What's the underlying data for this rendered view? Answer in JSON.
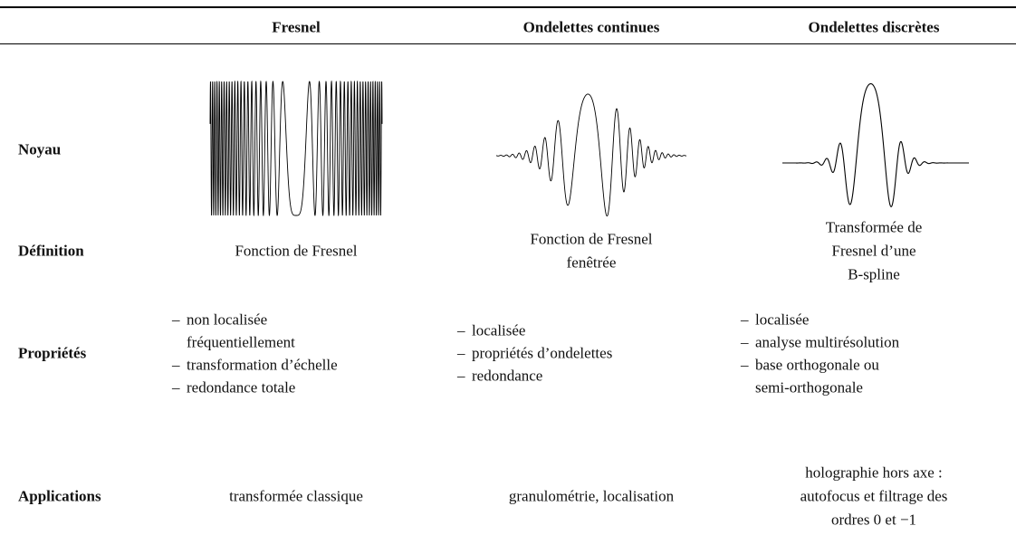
{
  "table": {
    "columns": [
      "Fresnel",
      "Ondelettes continues",
      "Ondelettes discrètes"
    ],
    "rows": [
      {
        "label": "Noyau"
      },
      {
        "label": "Définition",
        "cells": [
          [
            "Fonction de Fresnel"
          ],
          [
            "Fonction de Fresnel",
            "fenêtrée"
          ],
          [
            "Transformée de",
            "Fresnel d’une",
            "B-spline"
          ]
        ]
      },
      {
        "label": "Propriétés",
        "items": [
          [
            [
              "non localisée",
              "fréquentiellement"
            ],
            [
              "transformation d’échelle"
            ],
            [
              "redondance totale"
            ]
          ],
          [
            [
              "localisée"
            ],
            [
              "propriétés d’ondelettes"
            ],
            [
              "redondance"
            ]
          ],
          [
            [
              "localisée"
            ],
            [
              "analyse multirésolution"
            ],
            [
              "base orthogonale ou",
              "semi-orthogonale"
            ]
          ]
        ]
      },
      {
        "label": "Applications",
        "cells": [
          [
            "transformée classique"
          ],
          [
            "granulométrie, localisation"
          ],
          [
            "holographie hors axe :",
            "autofocus et filtrage des",
            "ordres 0 et −1"
          ]
        ]
      }
    ]
  }
}
